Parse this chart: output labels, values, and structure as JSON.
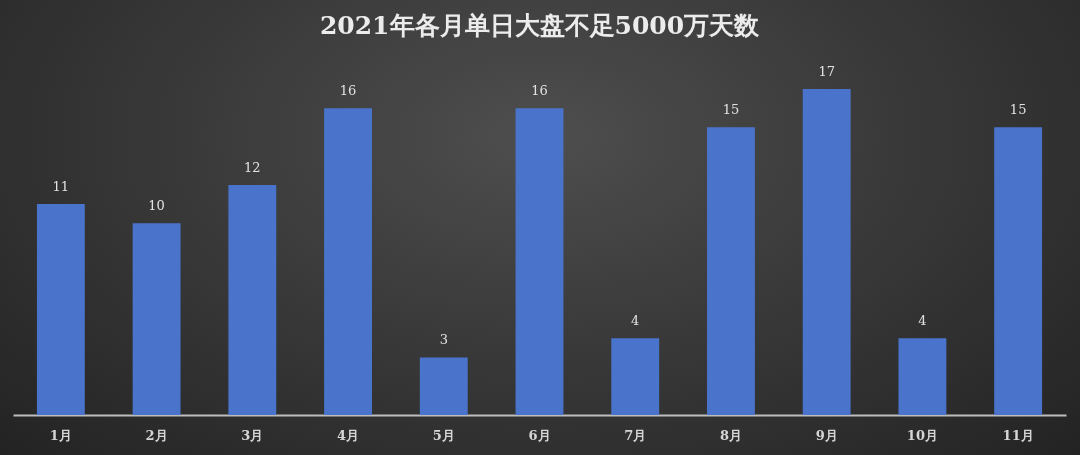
{
  "chart_data": {
    "type": "bar",
    "title": "2021年各月单日大盘不足5000万天数",
    "categories": [
      "1月",
      "2月",
      "3月",
      "4月",
      "5月",
      "6月",
      "7月",
      "8月",
      "9月",
      "10月",
      "11月"
    ],
    "values": [
      11,
      10,
      12,
      16,
      3,
      16,
      4,
      15,
      17,
      4,
      15
    ],
    "color": "#4a74cc",
    "data_labels": true
  }
}
